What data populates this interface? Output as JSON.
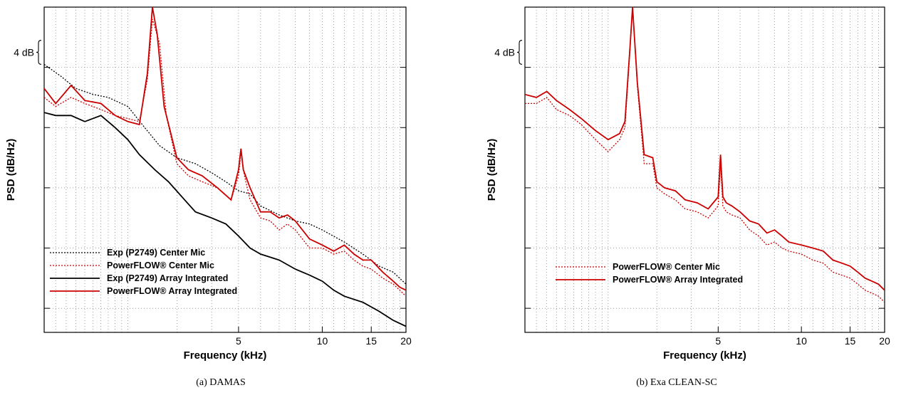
{
  "chart_data": [
    {
      "type": "line",
      "caption": "(a)  DAMAS",
      "xlabel": "Frequency (kHz)",
      "ylabel": "PSD (dB/Hz)",
      "xscale": "log",
      "xlim": [
        1.0,
        20
      ],
      "xticks": [
        5,
        10,
        15,
        20
      ],
      "ylim": [
        -44,
        10
      ],
      "yunit_annotation": "4 dB",
      "grid": true,
      "legend_position": "bottom-left",
      "series": [
        {
          "name": "Exp (P2749) Center Mic",
          "color": "#000000",
          "style": "dotted",
          "x": [
            1.0,
            1.15,
            1.3,
            1.5,
            1.7,
            2.0,
            2.3,
            2.6,
            3.0,
            3.5,
            4.0,
            4.5,
            5.0,
            5.5,
            6.0,
            7.0,
            8.0,
            9.0,
            10.0,
            12.0,
            14.0,
            16.0,
            18.0,
            20.0
          ],
          "y": [
            0.5,
            -1.5,
            -3.5,
            -4.5,
            -5.0,
            -6.5,
            -10.0,
            -13.0,
            -15.0,
            -16.0,
            -17.5,
            -19.0,
            -20.5,
            -21.0,
            -23.0,
            -24.5,
            -25.5,
            -26.0,
            -27.0,
            -29.0,
            -31.0,
            -33.0,
            -34.0,
            -36.0
          ]
        },
        {
          "name": "PowerFLOW® Center Mic",
          "color": "#cc0000",
          "style": "dotted",
          "x": [
            1.0,
            1.1,
            1.25,
            1.4,
            1.6,
            1.8,
            2.0,
            2.2,
            2.35,
            2.45,
            2.6,
            2.75,
            3.0,
            3.3,
            3.7,
            4.2,
            4.7,
            5.0,
            5.1,
            5.25,
            5.5,
            6.0,
            6.5,
            7.0,
            7.5,
            8.0,
            9.0,
            10.0,
            11.0,
            12.0,
            13.0,
            14.0,
            15.0,
            16.5,
            18.0,
            19.0,
            20.0
          ],
          "y": [
            -5.0,
            -6.5,
            -5.0,
            -6.0,
            -7.0,
            -8.0,
            -8.5,
            -9.0,
            -2.0,
            8.0,
            4.0,
            -8.0,
            -16.0,
            -18.0,
            -19.0,
            -20.0,
            -22.0,
            -18.0,
            -14.0,
            -18.0,
            -22.0,
            -25.0,
            -25.5,
            -27.0,
            -26.0,
            -27.0,
            -30.0,
            -30.0,
            -31.0,
            -30.5,
            -32.0,
            -33.0,
            -33.5,
            -35.0,
            -36.0,
            -37.0,
            -38.0
          ]
        },
        {
          "name": "Exp (P2749) Array Integrated",
          "color": "#000000",
          "style": "solid",
          "x": [
            1.0,
            1.1,
            1.25,
            1.4,
            1.6,
            1.8,
            2.0,
            2.2,
            2.5,
            2.8,
            3.2,
            3.5,
            4.0,
            4.5,
            5.0,
            5.5,
            6.0,
            7.0,
            8.0,
            9.0,
            10.0,
            11.0,
            12.0,
            14.0,
            16.0,
            18.0,
            20.0
          ],
          "y": [
            -7.5,
            -8.0,
            -8.0,
            -9.0,
            -8.0,
            -10.0,
            -12.0,
            -14.5,
            -17.0,
            -19.0,
            -22.0,
            -24.0,
            -25.0,
            -26.0,
            -28.0,
            -30.0,
            -31.0,
            -32.0,
            -33.5,
            -34.5,
            -35.5,
            -37.0,
            -38.0,
            -39.0,
            -40.5,
            -42.0,
            -43.0
          ]
        },
        {
          "name": "PowerFLOW® Array Integrated",
          "color": "#cc0000",
          "style": "solid",
          "x": [
            1.0,
            1.1,
            1.25,
            1.4,
            1.6,
            1.8,
            2.0,
            2.2,
            2.35,
            2.45,
            2.55,
            2.7,
            3.0,
            3.3,
            3.7,
            4.2,
            4.7,
            5.0,
            5.1,
            5.2,
            5.5,
            6.0,
            6.5,
            7.0,
            7.5,
            8.0,
            9.0,
            10.0,
            11.0,
            12.0,
            13.0,
            14.0,
            15.0,
            16.5,
            18.0,
            19.0,
            20.0
          ],
          "y": [
            -3.5,
            -6.0,
            -3.0,
            -5.5,
            -6.0,
            -8.0,
            -9.0,
            -9.5,
            -1.0,
            10.0,
            5.5,
            -6.5,
            -15.0,
            -17.0,
            -18.0,
            -20.0,
            -22.0,
            -17.0,
            -13.5,
            -17.0,
            -20.0,
            -24.0,
            -24.0,
            -25.0,
            -24.5,
            -25.5,
            -28.5,
            -29.5,
            -30.5,
            -29.5,
            -31.0,
            -32.0,
            -32.0,
            -34.0,
            -35.5,
            -36.5,
            -37.0
          ]
        }
      ]
    },
    {
      "type": "line",
      "caption": "(b)  Exa CLEAN-SC",
      "xlabel": "Frequency (kHz)",
      "ylabel": "PSD (dB/Hz)",
      "xscale": "log",
      "xlim": [
        1.0,
        20
      ],
      "xticks": [
        5,
        10,
        15,
        20
      ],
      "ylim": [
        -44,
        10
      ],
      "yunit_annotation": "4 dB",
      "grid": true,
      "legend_position": "bottom-center",
      "series": [
        {
          "name": "PowerFLOW® Center Mic",
          "color": "#cc0000",
          "style": "dotted",
          "x": [
            1.0,
            1.1,
            1.2,
            1.3,
            1.45,
            1.6,
            1.8,
            2.0,
            2.2,
            2.3,
            2.4,
            2.45,
            2.55,
            2.7,
            2.9,
            3.0,
            3.2,
            3.5,
            3.8,
            4.2,
            4.6,
            5.0,
            5.1,
            5.2,
            5.35,
            5.6,
            6.0,
            6.5,
            7.0,
            7.5,
            8.0,
            8.5,
            9.0,
            10.0,
            11.0,
            12.0,
            13.0,
            14.0,
            15.0,
            16.0,
            17.0,
            18.0,
            19.0,
            20.0
          ],
          "y": [
            -6.0,
            -6.0,
            -5.0,
            -7.0,
            -8.0,
            -9.5,
            -12.0,
            -14.0,
            -12.0,
            -10.0,
            3.0,
            10.0,
            -3.0,
            -16.0,
            -16.0,
            -20.0,
            -21.0,
            -22.0,
            -23.5,
            -24.0,
            -25.0,
            -23.0,
            -16.0,
            -23.0,
            -24.0,
            -24.5,
            -25.0,
            -27.0,
            -28.0,
            -29.5,
            -29.0,
            -30.0,
            -30.5,
            -31.0,
            -32.0,
            -32.5,
            -34.0,
            -34.5,
            -35.0,
            -36.0,
            -37.0,
            -37.5,
            -38.0,
            -39.0
          ]
        },
        {
          "name": "PowerFLOW® Array Integrated",
          "color": "#cc0000",
          "style": "solid",
          "x": [
            1.0,
            1.1,
            1.2,
            1.3,
            1.45,
            1.6,
            1.8,
            2.0,
            2.2,
            2.3,
            2.4,
            2.45,
            2.55,
            2.7,
            2.9,
            3.0,
            3.2,
            3.5,
            3.8,
            4.2,
            4.6,
            5.0,
            5.1,
            5.2,
            5.35,
            5.6,
            6.0,
            6.5,
            7.0,
            7.5,
            8.0,
            8.5,
            9.0,
            10.0,
            11.0,
            12.0,
            13.0,
            14.0,
            15.0,
            16.0,
            17.0,
            18.0,
            19.0,
            20.0
          ],
          "y": [
            -4.5,
            -5.0,
            -4.0,
            -5.5,
            -7.0,
            -8.5,
            -10.5,
            -12.0,
            -11.0,
            -9.0,
            3.5,
            10.0,
            -2.5,
            -14.5,
            -15.0,
            -19.0,
            -20.0,
            -20.5,
            -22.0,
            -22.5,
            -23.5,
            -21.5,
            -14.5,
            -21.5,
            -22.5,
            -23.0,
            -24.0,
            -25.5,
            -26.0,
            -27.5,
            -27.0,
            -28.0,
            -29.0,
            -29.5,
            -30.0,
            -30.5,
            -32.0,
            -32.5,
            -33.0,
            -34.0,
            -35.0,
            -35.5,
            -36.0,
            -37.0
          ]
        }
      ]
    }
  ]
}
